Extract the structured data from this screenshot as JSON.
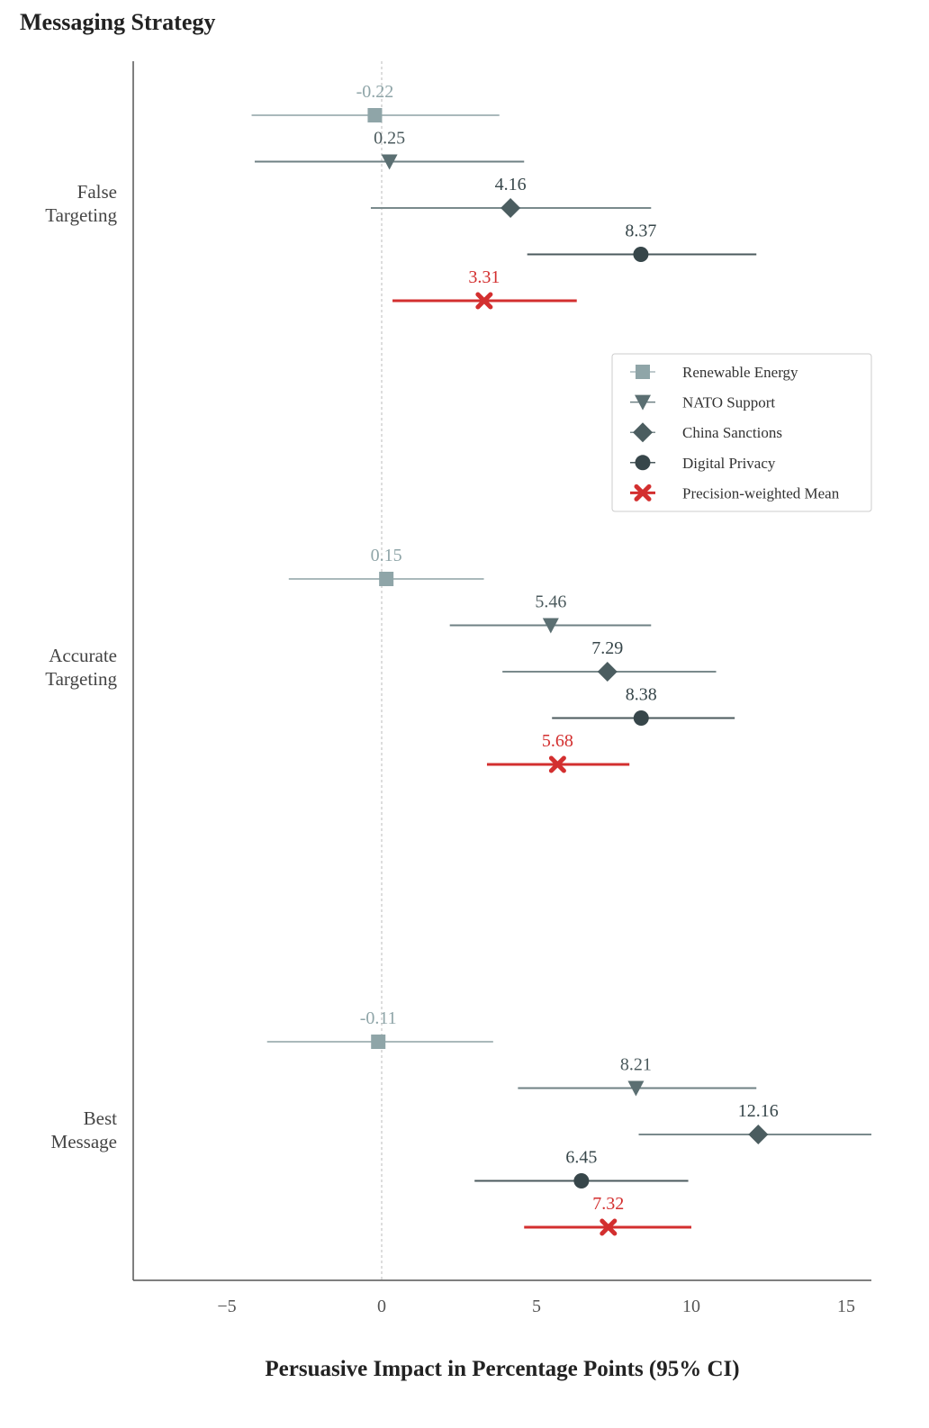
{
  "chart_data": {
    "type": "scatter",
    "subtype": "forest-plot",
    "title": "Messaging Strategy",
    "xlabel": "Persuasive Impact in Percentage Points (95% CI)",
    "ylabel": "",
    "xlim": [
      -8,
      16
    ],
    "xticks": [
      -5,
      0,
      5,
      10,
      15
    ],
    "xtick_labels": [
      "−5",
      "0",
      "5",
      "10",
      "15"
    ],
    "reference_line": 0,
    "grid": false,
    "legend_position": "right",
    "groups": [
      {
        "label": "False\nTargeting",
        "series": [
          {
            "name": "Renewable Energy",
            "estimate": -0.22,
            "label": "-0.22",
            "ci": [
              -4.2,
              3.8
            ]
          },
          {
            "name": "NATO Support",
            "estimate": 0.25,
            "label": "0.25",
            "ci": [
              -4.1,
              4.6
            ]
          },
          {
            "name": "China Sanctions",
            "estimate": 4.16,
            "label": "4.16",
            "ci": [
              -0.35,
              8.7
            ]
          },
          {
            "name": "Digital Privacy",
            "estimate": 8.37,
            "label": "8.37",
            "ci": [
              4.7,
              12.1
            ]
          },
          {
            "name": "Precision-weighted Mean",
            "estimate": 3.31,
            "label": "3.31",
            "ci": [
              0.35,
              6.3
            ]
          }
        ]
      },
      {
        "label": "Accurate\nTargeting",
        "series": [
          {
            "name": "Renewable Energy",
            "estimate": 0.15,
            "label": "0.15",
            "ci": [
              -3.0,
              3.3
            ]
          },
          {
            "name": "NATO Support",
            "estimate": 5.46,
            "label": "5.46",
            "ci": [
              2.2,
              8.7
            ]
          },
          {
            "name": "China Sanctions",
            "estimate": 7.29,
            "label": "7.29",
            "ci": [
              3.9,
              10.8
            ]
          },
          {
            "name": "Digital Privacy",
            "estimate": 8.38,
            "label": "8.38",
            "ci": [
              5.5,
              11.4
            ]
          },
          {
            "name": "Precision-weighted Mean",
            "estimate": 5.68,
            "label": "5.68",
            "ci": [
              3.4,
              8.0
            ]
          }
        ]
      },
      {
        "label": "Best\nMessage",
        "series": [
          {
            "name": "Renewable Energy",
            "estimate": -0.11,
            "label": "-0.11",
            "ci": [
              -3.7,
              3.6
            ]
          },
          {
            "name": "NATO Support",
            "estimate": 8.21,
            "label": "8.21",
            "ci": [
              4.4,
              12.1
            ]
          },
          {
            "name": "China Sanctions",
            "estimate": 12.16,
            "label": "12.16",
            "ci": [
              8.3,
              16.0
            ]
          },
          {
            "name": "Digital Privacy",
            "estimate": 6.45,
            "label": "6.45",
            "ci": [
              3.0,
              9.9
            ]
          },
          {
            "name": "Precision-weighted Mean",
            "estimate": 7.32,
            "label": "7.32",
            "ci": [
              4.6,
              10.0
            ]
          }
        ]
      }
    ],
    "legend": [
      {
        "name": "Renewable Energy",
        "marker": "square",
        "color": "#8fa5a8"
      },
      {
        "name": "NATO Support",
        "marker": "triangle-down",
        "color": "#5b6f72"
      },
      {
        "name": "China Sanctions",
        "marker": "diamond",
        "color": "#4b5d60"
      },
      {
        "name": "Digital Privacy",
        "marker": "circle",
        "color": "#37464a"
      },
      {
        "name": "Precision-weighted Mean",
        "marker": "x",
        "color": "#d32f2f"
      }
    ]
  },
  "colors": {
    "renewable_line": "#aab9bb",
    "renewable_text": "#8fa5a8",
    "nato_line": "#6f8184",
    "china_line": "#7a8a8c",
    "privacy_line": "#4b5a5d",
    "mean": "#d32f2f",
    "axis": "#555555",
    "ref_line": "#bbbbbb",
    "text": "#222222"
  }
}
